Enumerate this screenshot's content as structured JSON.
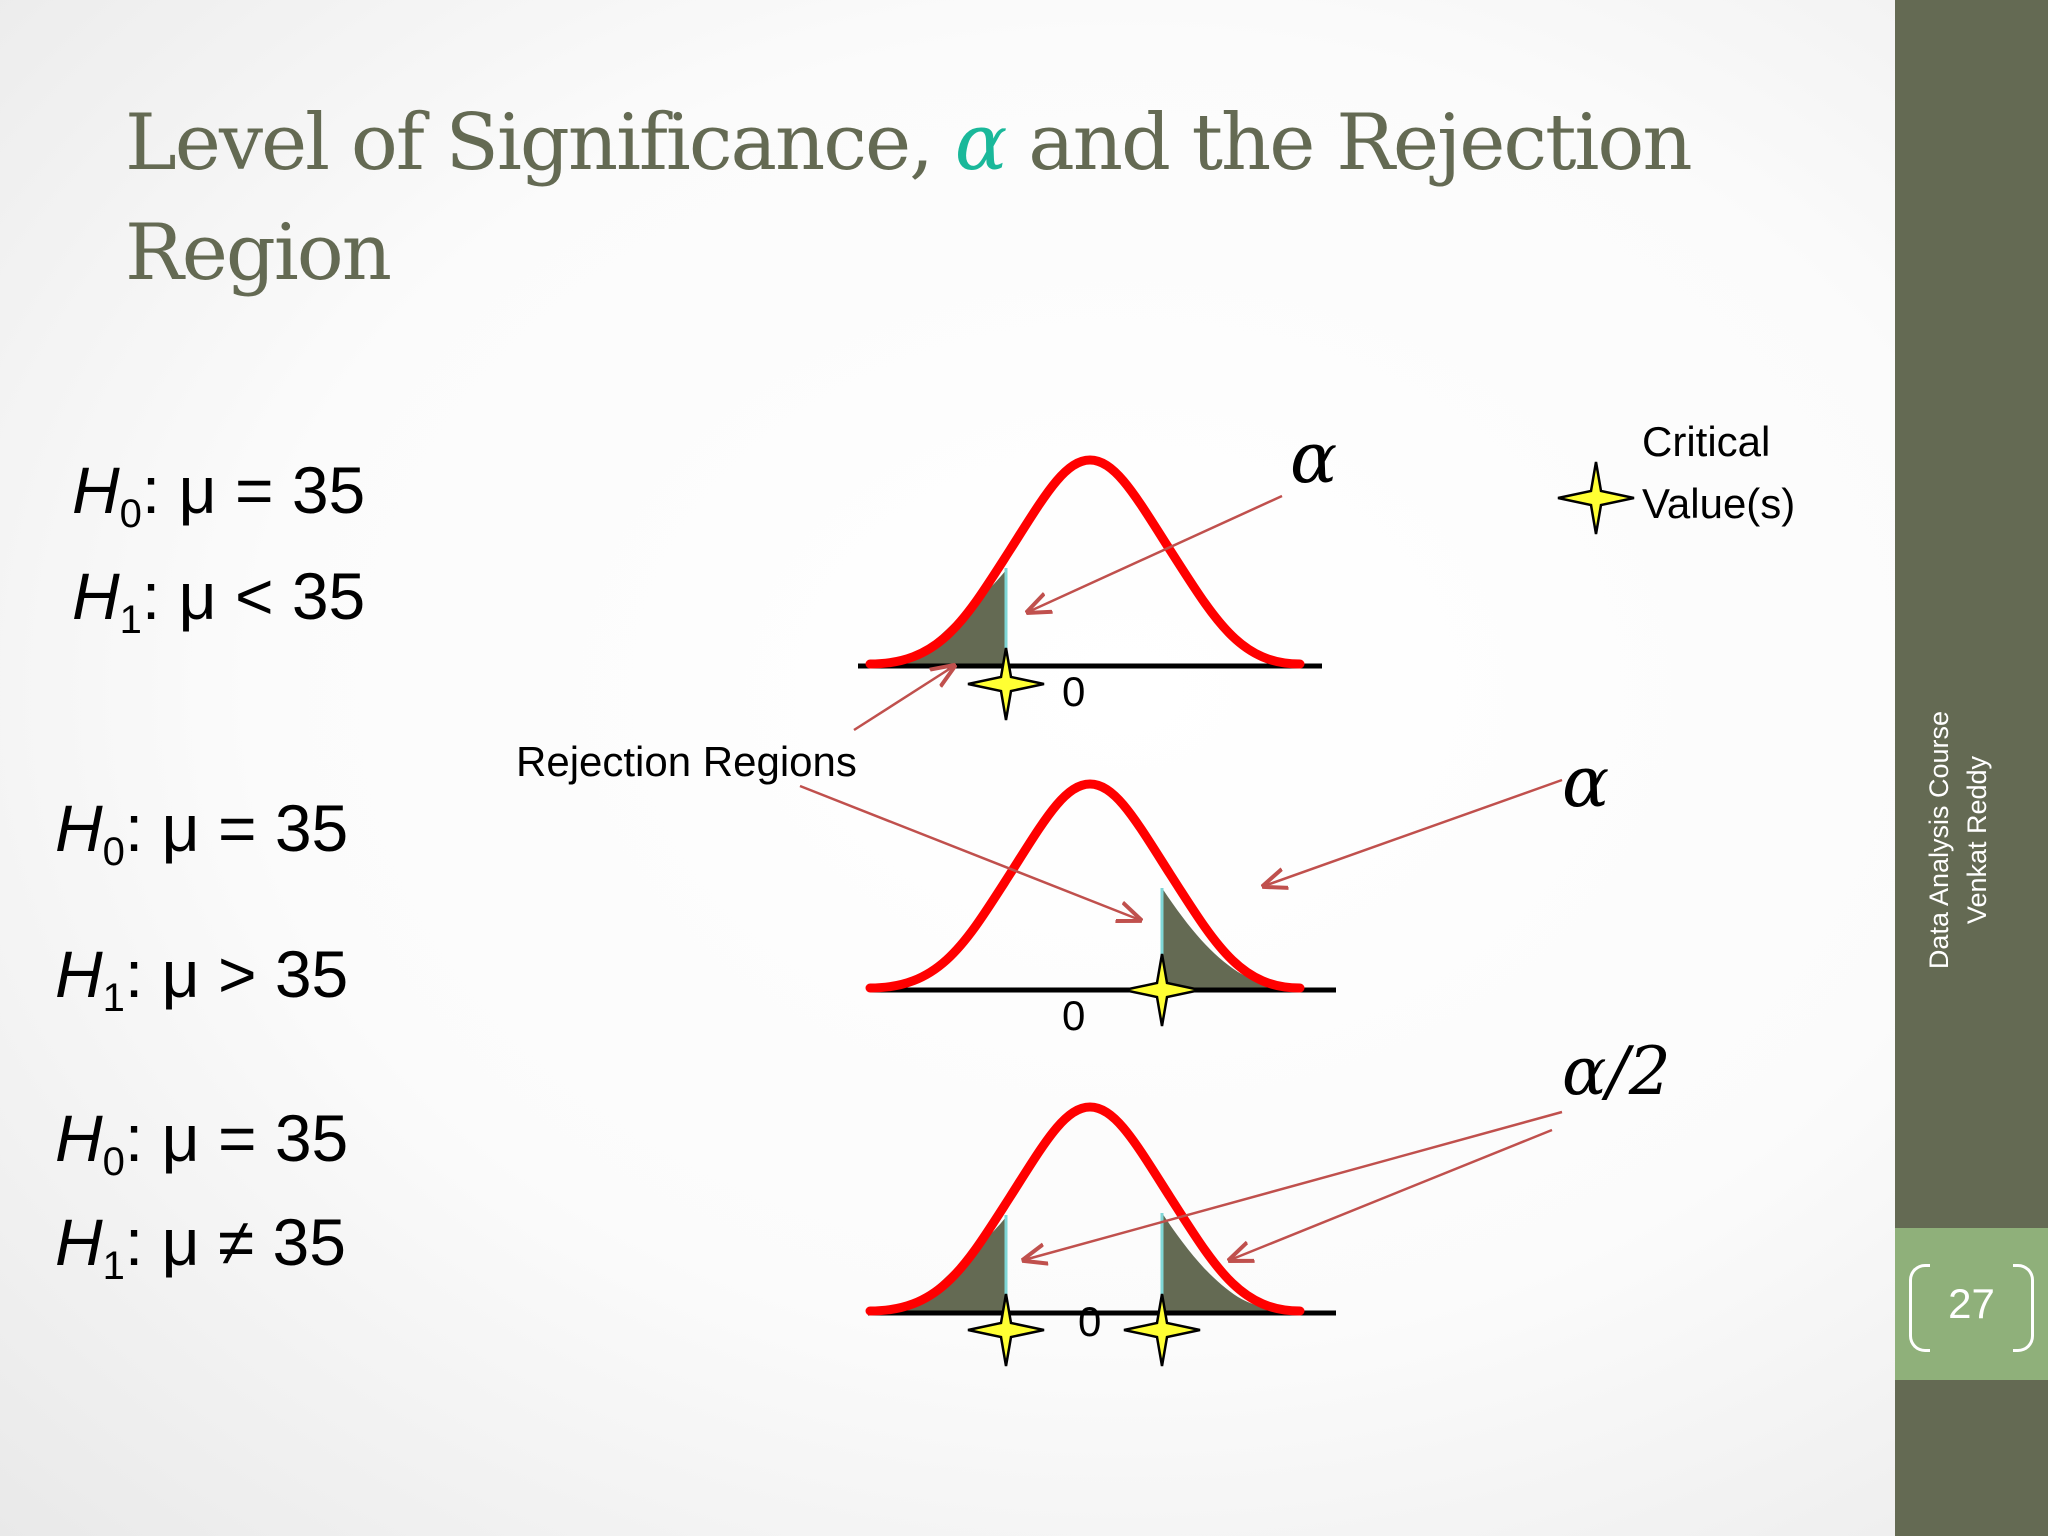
{
  "title": {
    "part1": "Level of Significance, ",
    "alpha": "α",
    "part2": " and the Rejection Region"
  },
  "hypotheses": [
    {
      "h0_label": "H",
      "h0_sub": "0",
      "h0_rel": ": μ = 35",
      "h1_label": "H",
      "h1_sub": "1",
      "h1_rel": ": μ < 35"
    },
    {
      "h0_label": "H",
      "h0_sub": "0",
      "h0_rel": ": μ = 35",
      "h1_label": "H",
      "h1_sub": "1",
      "h1_rel": ": μ > 35"
    },
    {
      "h0_label": "H",
      "h0_sub": "0",
      "h0_rel": ": μ = 35",
      "h1_label": "H",
      "h1_sub": "1",
      "h1_rel": ": μ ≠ 35"
    }
  ],
  "labels": {
    "zero": "0",
    "alpha": "α",
    "alpha_half": "α/2",
    "rejection_regions": "Rejection Regions",
    "critical_line1": "Critical",
    "critical_line2": "Value(s)"
  },
  "sidebar": {
    "line1": "Data Analysis Course",
    "line2": "Venkat Reddy",
    "page_number": "27"
  },
  "colors": {
    "curve": "#ff0000",
    "region": "#646a53",
    "star": "#ffff33",
    "arrow": "#c0504d",
    "accent": "#1ab89a"
  }
}
